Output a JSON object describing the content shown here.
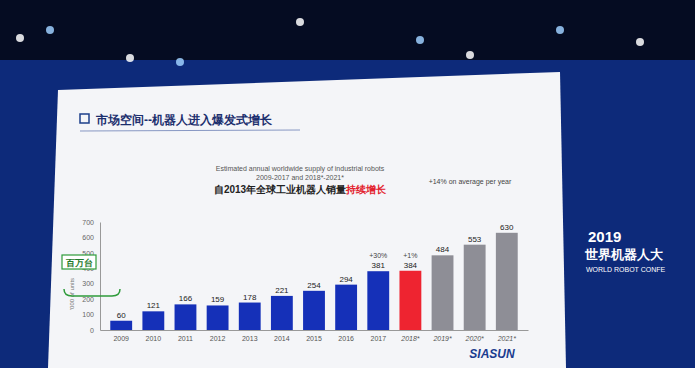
{
  "chart_data": {
    "type": "bar",
    "title": "市场空间--机器人进入爆发式增长",
    "subtitle": "Estimated annual worldwide supply of industrial robots",
    "subtitle_years": "2009-2017 and 2018*-2021*",
    "headline": "自2013年全球工业机器人销量",
    "headline_highlight": "持续增长",
    "y_label": "'000 of units",
    "categories": [
      "2009",
      "2010",
      "2011",
      "2012",
      "2013",
      "2014",
      "2015",
      "2016",
      "2017",
      "2018*",
      "2019*",
      "2020*",
      "2021*"
    ],
    "values": [
      60,
      121,
      166,
      159,
      178,
      221,
      254,
      294,
      381,
      384,
      484,
      553,
      630
    ],
    "colors": [
      "#1530b8",
      "#1530b8",
      "#1530b8",
      "#1530b8",
      "#1530b8",
      "#1530b8",
      "#1530b8",
      "#1530b8",
      "#1530b8",
      "#ee2430",
      "#8e8e96",
      "#8e8e96",
      "#8e8e96"
    ],
    "ylim": [
      0,
      700
    ],
    "yticks": [
      0,
      100,
      200,
      300,
      400,
      500,
      600,
      700
    ],
    "grid": false,
    "data_labels": true,
    "annotations": [
      "+30%",
      "+1%",
      "+14% on average per year",
      "百万台"
    ],
    "logo": "SIASUN",
    "background_text": [
      "2019",
      "世界机器人大",
      "WORLD ROBOT CONFE"
    ]
  }
}
